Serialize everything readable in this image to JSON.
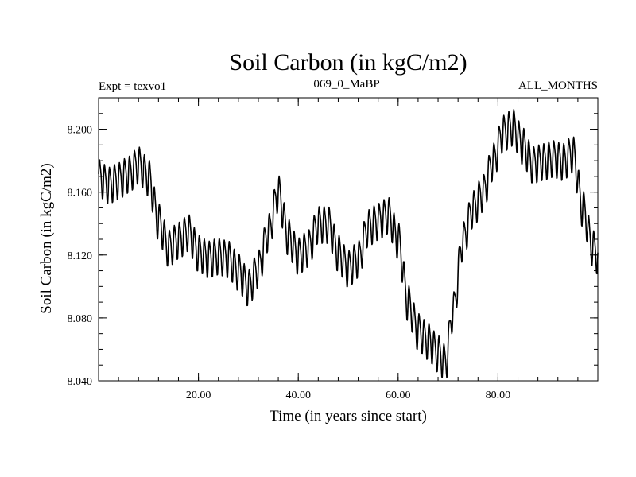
{
  "chart_data": {
    "type": "line",
    "title": "Soil Carbon (in kgC/m2)",
    "subtitle_left": "Expt = texvo1",
    "subtitle_center": "069_0_MaBP",
    "subtitle_right": "ALL_MONTHS",
    "xlabel": "Time (in years since start)",
    "ylabel": "Soil Carbon (in kgC/m2)",
    "xlim": [
      0,
      100
    ],
    "ylim": [
      8.04,
      8.22
    ],
    "xticks": [
      20,
      40,
      60,
      80
    ],
    "xtick_labels": [
      "20.00",
      "40.00",
      "60.00",
      "80.00"
    ],
    "yticks": [
      8.04,
      8.08,
      8.12,
      8.16,
      8.2
    ],
    "ytick_labels": [
      "8.040",
      "8.080",
      "8.120",
      "8.160",
      "8.200"
    ],
    "grid": false,
    "series": [
      {
        "name": "Soil Carbon",
        "color": "#000000",
        "seasonal_amplitude": 0.011,
        "cycles_per_year": 1,
        "x": [
          0,
          2,
          4,
          6,
          8,
          10,
          12,
          14,
          16,
          18,
          20,
          22,
          24,
          26,
          28,
          30,
          32,
          34,
          36,
          38,
          40,
          42,
          44,
          46,
          48,
          50,
          52,
          54,
          56,
          58,
          60,
          62,
          64,
          66,
          68,
          69.5,
          71,
          73,
          75,
          77,
          79,
          81,
          83,
          85,
          87,
          89,
          91,
          93,
          95,
          97,
          99,
          100
        ],
        "y": [
          8.17,
          8.165,
          8.168,
          8.172,
          8.178,
          8.17,
          8.142,
          8.125,
          8.13,
          8.135,
          8.122,
          8.118,
          8.12,
          8.118,
          8.11,
          8.1,
          8.112,
          8.135,
          8.16,
          8.132,
          8.12,
          8.125,
          8.14,
          8.14,
          8.122,
          8.112,
          8.118,
          8.138,
          8.142,
          8.146,
          8.13,
          8.09,
          8.072,
          8.066,
          8.058,
          8.052,
          8.085,
          8.13,
          8.15,
          8.16,
          8.18,
          8.198,
          8.202,
          8.19,
          8.178,
          8.18,
          8.182,
          8.18,
          8.185,
          8.15,
          8.125,
          8.12
        ]
      }
    ]
  }
}
